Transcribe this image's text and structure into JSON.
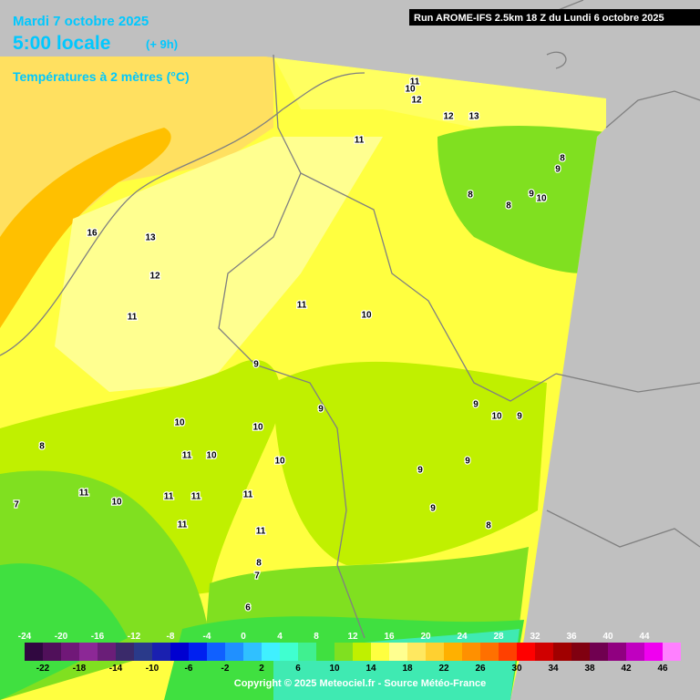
{
  "header": {
    "date": "Mardi 7 octobre 2025",
    "time": "5:00 locale",
    "lead": "(+ 9h)",
    "parameter": "Températures à 2 mètres (°C)",
    "run": "Run AROME-IFS 2.5km 18 Z du Lundi 6 octobre 2025"
  },
  "scale": {
    "top_labels": [
      -24,
      -20,
      -16,
      -12,
      -8,
      -4,
      0,
      4,
      8,
      12,
      16,
      20,
      24,
      28,
      32,
      36,
      40,
      44
    ],
    "bottom_labels": [
      -22,
      -18,
      -14,
      -10,
      -6,
      -2,
      2,
      6,
      10,
      14,
      18,
      22,
      26,
      30,
      34,
      38,
      42,
      46
    ],
    "colors": [
      "#300840",
      "#50105a",
      "#701878",
      "#8c2896",
      "#6a1e78",
      "#3a2a6a",
      "#2a3a8a",
      "#1a20b0",
      "#0000d0",
      "#0020f0",
      "#1060ff",
      "#2090ff",
      "#30c0ff",
      "#40f0ff",
      "#40ffd0",
      "#40f090",
      "#40e040",
      "#80e020",
      "#c0f000",
      "#ffff40",
      "#ffff90",
      "#ffe860",
      "#ffd030",
      "#ffb000",
      "#ff9000",
      "#ff7000",
      "#ff4000",
      "#ff0000",
      "#d00000",
      "#a00000",
      "#800010",
      "#700050",
      "#900080",
      "#c000c0",
      "#f000f0",
      "#ff80ff"
    ]
  },
  "contour_labels": [
    "11",
    "10",
    "12",
    "12",
    "13",
    "11",
    "8",
    "9",
    "8",
    "8",
    "9",
    "10",
    "16",
    "13",
    "12",
    "11",
    "11",
    "10",
    "9",
    "9",
    "9",
    "10",
    "9",
    "10",
    "10",
    "8",
    "11",
    "10",
    "10",
    "9",
    "9",
    "11",
    "10",
    "11",
    "11",
    "11",
    "7",
    "9",
    "11",
    "11",
    "8",
    "8",
    "7",
    "6"
  ],
  "footer": {
    "copyright": "Copyright © 2025 Meteociel.fr - Source Météo-France"
  }
}
